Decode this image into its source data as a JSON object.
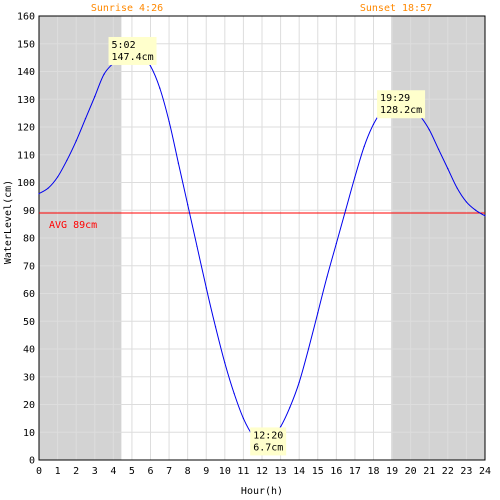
{
  "header": {
    "sunrise_label": "Sunrise 4:26",
    "sunset_label": "Sunset 18:57"
  },
  "colors": {
    "night_shade": "#d3d3d3",
    "grid": "#dddddd",
    "tide_line": "#0000ee",
    "average_line": "#ff0000",
    "sun_label": "#ff8800",
    "callout_bg": "#ffffcc",
    "text": "#000000"
  },
  "chart_data": {
    "type": "line",
    "xlabel": "Hour(h)",
    "ylabel": "WaterLevel(cm)",
    "xlim": [
      0,
      24
    ],
    "ylim": [
      0,
      160
    ],
    "x_ticks": [
      0,
      1,
      2,
      3,
      4,
      5,
      6,
      7,
      8,
      9,
      10,
      11,
      12,
      13,
      14,
      15,
      16,
      17,
      18,
      19,
      20,
      21,
      22,
      23,
      24
    ],
    "y_ticks": [
      0,
      10,
      20,
      30,
      40,
      50,
      60,
      70,
      80,
      90,
      100,
      110,
      120,
      130,
      140,
      150,
      160
    ],
    "grid": true,
    "night_periods": [
      {
        "from": 0,
        "to": 4.433
      },
      {
        "from": 18.95,
        "to": 24
      }
    ],
    "average": {
      "value": 89,
      "label": "AVG 89cm"
    },
    "series": [
      {
        "x": [
          0,
          0.5,
          1,
          1.5,
          2,
          2.5,
          3,
          3.5,
          4,
          4.5,
          5,
          5.5,
          6,
          6.5,
          7,
          7.5,
          8,
          8.5,
          9,
          9.5,
          10,
          10.5,
          11,
          11.5,
          12,
          12.5,
          13,
          13.5,
          14,
          14.5,
          15,
          15.5,
          16,
          16.5,
          17,
          17.5,
          18,
          18.5,
          19,
          19.5,
          20,
          20.5,
          21,
          21.5,
          22,
          22.5,
          23,
          23.5,
          24
        ],
        "values": [
          96,
          98,
          102,
          108,
          115,
          123,
          131,
          139,
          143,
          146,
          147.4,
          146,
          142,
          134,
          122,
          107,
          92,
          77,
          62,
          48,
          35,
          24,
          15,
          9,
          7,
          8,
          12,
          19,
          28,
          40,
          53,
          66,
          78,
          90,
          102,
          113,
          121,
          126,
          128,
          128.2,
          127,
          124,
          119,
          112,
          105,
          98,
          93,
          90,
          88
        ]
      }
    ],
    "annotations": [
      {
        "x": 5.033,
        "y": 147.4,
        "time": "5:02",
        "level": "147.4cm"
      },
      {
        "x": 12.333,
        "y": 6.7,
        "time": "12:20",
        "level": "6.7cm"
      },
      {
        "x": 19.483,
        "y": 128.2,
        "time": "19:29",
        "level": "128.2cm"
      }
    ]
  }
}
